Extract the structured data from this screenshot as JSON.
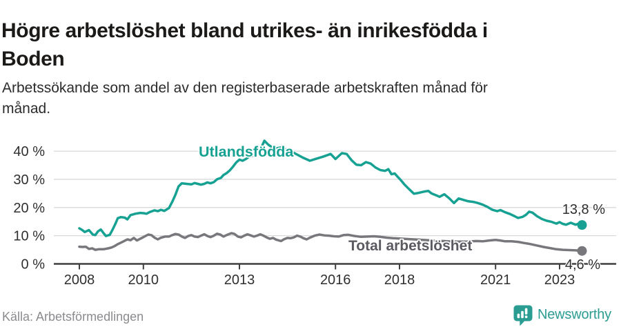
{
  "header": {
    "title": "Högre arbetslöshet bland utrikes- än inrikesfödda i\nBoden",
    "subtitle": "Arbetssökande som andel av den registerbaserade arbetskraften månad för\nmånad."
  },
  "footer": {
    "source": "Källa: Arbetsförmedlingen",
    "brand": "Newsworthy",
    "brand_icon": "newsworthy-speech-bubble-bar-chart-icon"
  },
  "colors": {
    "accent_teal": "#16a192",
    "series_gray": "#77777c",
    "label_gray": "#5a5a60",
    "grid": "#d9d9d9",
    "axis": "#3f3f3f",
    "tick_text": "#2f2f2f",
    "value_label_text": "#2d2d2d",
    "brand_teal": "#2b9c92"
  },
  "chart_data": {
    "type": "line",
    "title": "Högre arbetslöshet bland utrikes- än inrikesfödda i Boden",
    "subtitle": "Arbetssökande som andel av den registerbaserade arbetskraften månad för månad.",
    "unit": "%",
    "grid": true,
    "x_axis": {
      "range": [
        2007.9,
        2024.1
      ],
      "ticks": [
        2008,
        2010,
        2013,
        2016,
        2018,
        2021,
        2023
      ],
      "tick_labels": [
        "2008",
        "2010",
        "2013",
        "2016",
        "2018",
        "2021",
        "2023"
      ]
    },
    "y_axis": {
      "range": [
        0,
        46
      ],
      "ticks": [
        0,
        10,
        20,
        30,
        40
      ],
      "tick_labels": [
        "0 %",
        "10 %",
        "20 %",
        "30 %",
        "40 %"
      ]
    },
    "series": [
      {
        "name": "Utlandsfödda",
        "color": "#16a192",
        "end_value": 13.8,
        "end_label": "13,8 %",
        "points": [
          [
            2008.0,
            12.6
          ],
          [
            2008.08,
            12.1
          ],
          [
            2008.17,
            11.3
          ],
          [
            2008.3,
            12.0
          ],
          [
            2008.42,
            10.4
          ],
          [
            2008.5,
            10.2
          ],
          [
            2008.58,
            11.5
          ],
          [
            2008.67,
            12.2
          ],
          [
            2008.75,
            11.0
          ],
          [
            2008.83,
            9.9
          ],
          [
            2008.95,
            10.3
          ],
          [
            2009.05,
            12.4
          ],
          [
            2009.12,
            14.1
          ],
          [
            2009.2,
            16.2
          ],
          [
            2009.3,
            16.6
          ],
          [
            2009.42,
            16.4
          ],
          [
            2009.5,
            15.8
          ],
          [
            2009.6,
            17.3
          ],
          [
            2009.75,
            17.8
          ],
          [
            2009.9,
            18.1
          ],
          [
            2010.0,
            18.0
          ],
          [
            2010.1,
            17.8
          ],
          [
            2010.2,
            18.4
          ],
          [
            2010.35,
            19.0
          ],
          [
            2010.45,
            18.7
          ],
          [
            2010.55,
            19.2
          ],
          [
            2010.65,
            18.8
          ],
          [
            2010.8,
            19.8
          ],
          [
            2010.9,
            22.0
          ],
          [
            2011.0,
            24.5
          ],
          [
            2011.1,
            27.5
          ],
          [
            2011.2,
            28.6
          ],
          [
            2011.35,
            28.4
          ],
          [
            2011.5,
            28.2
          ],
          [
            2011.6,
            28.7
          ],
          [
            2011.7,
            28.4
          ],
          [
            2011.8,
            28.1
          ],
          [
            2011.9,
            28.4
          ],
          [
            2012.0,
            28.9
          ],
          [
            2012.1,
            28.6
          ],
          [
            2012.2,
            29.0
          ],
          [
            2012.3,
            30.0
          ],
          [
            2012.42,
            30.5
          ],
          [
            2012.5,
            31.5
          ],
          [
            2012.6,
            32.2
          ],
          [
            2012.7,
            33.2
          ],
          [
            2012.8,
            34.5
          ],
          [
            2012.9,
            36.0
          ],
          [
            2013.0,
            37.0
          ],
          [
            2013.1,
            36.6
          ],
          [
            2013.2,
            37.2
          ],
          [
            2013.3,
            38.0
          ],
          [
            2013.45,
            38.5
          ],
          [
            2013.55,
            39.2
          ],
          [
            2013.65,
            40.5
          ],
          [
            2013.78,
            43.7
          ],
          [
            2013.9,
            42.3
          ],
          [
            2014.0,
            41.5
          ],
          [
            2014.15,
            41.0
          ],
          [
            2014.3,
            41.3
          ],
          [
            2014.45,
            40.6
          ],
          [
            2014.6,
            40.0
          ],
          [
            2014.8,
            38.8
          ],
          [
            2015.0,
            37.6
          ],
          [
            2015.2,
            36.6
          ],
          [
            2015.4,
            37.3
          ],
          [
            2015.6,
            38.0
          ],
          [
            2015.85,
            39.0
          ],
          [
            2016.0,
            37.2
          ],
          [
            2016.2,
            39.3
          ],
          [
            2016.35,
            39.0
          ],
          [
            2016.5,
            36.8
          ],
          [
            2016.65,
            35.2
          ],
          [
            2016.8,
            35.0
          ],
          [
            2016.95,
            36.1
          ],
          [
            2017.1,
            35.6
          ],
          [
            2017.25,
            34.2
          ],
          [
            2017.4,
            33.3
          ],
          [
            2017.55,
            33.0
          ],
          [
            2017.65,
            33.6
          ],
          [
            2017.75,
            31.8
          ],
          [
            2017.85,
            32.1
          ],
          [
            2017.95,
            30.8
          ],
          [
            2018.05,
            29.6
          ],
          [
            2018.15,
            28.2
          ],
          [
            2018.3,
            26.5
          ],
          [
            2018.45,
            24.9
          ],
          [
            2018.6,
            25.2
          ],
          [
            2018.75,
            25.6
          ],
          [
            2018.9,
            25.9
          ],
          [
            2019.0,
            25.0
          ],
          [
            2019.15,
            24.3
          ],
          [
            2019.25,
            23.8
          ],
          [
            2019.4,
            24.7
          ],
          [
            2019.55,
            23.3
          ],
          [
            2019.7,
            21.6
          ],
          [
            2019.85,
            23.2
          ],
          [
            2020.0,
            22.7
          ],
          [
            2020.15,
            22.2
          ],
          [
            2020.3,
            22.0
          ],
          [
            2020.45,
            21.6
          ],
          [
            2020.6,
            21.0
          ],
          [
            2020.75,
            20.2
          ],
          [
            2020.9,
            19.2
          ],
          [
            2021.05,
            18.7
          ],
          [
            2021.15,
            19.1
          ],
          [
            2021.3,
            18.3
          ],
          [
            2021.45,
            17.7
          ],
          [
            2021.6,
            16.9
          ],
          [
            2021.7,
            16.3
          ],
          [
            2021.85,
            16.7
          ],
          [
            2021.95,
            17.4
          ],
          [
            2022.05,
            18.5
          ],
          [
            2022.15,
            18.2
          ],
          [
            2022.3,
            16.9
          ],
          [
            2022.45,
            15.9
          ],
          [
            2022.6,
            15.3
          ],
          [
            2022.75,
            14.9
          ],
          [
            2022.9,
            14.3
          ],
          [
            2023.0,
            14.8
          ],
          [
            2023.1,
            14.2
          ],
          [
            2023.2,
            13.9
          ],
          [
            2023.35,
            14.6
          ],
          [
            2023.5,
            13.9
          ],
          [
            2023.6,
            14.3
          ],
          [
            2023.7,
            13.8
          ]
        ]
      },
      {
        "name": "Total arbetslöshet",
        "color": "#77777c",
        "end_value": 4.6,
        "end_label": "4,6 %",
        "points": [
          [
            2008.0,
            6.1
          ],
          [
            2008.1,
            6.0
          ],
          [
            2008.2,
            6.1
          ],
          [
            2008.3,
            5.3
          ],
          [
            2008.4,
            5.5
          ],
          [
            2008.5,
            5.0
          ],
          [
            2008.6,
            5.2
          ],
          [
            2008.75,
            5.2
          ],
          [
            2008.9,
            5.5
          ],
          [
            2009.0,
            5.8
          ],
          [
            2009.1,
            6.3
          ],
          [
            2009.2,
            7.0
          ],
          [
            2009.35,
            7.8
          ],
          [
            2009.5,
            8.7
          ],
          [
            2009.6,
            8.4
          ],
          [
            2009.7,
            9.2
          ],
          [
            2009.8,
            8.3
          ],
          [
            2009.95,
            9.2
          ],
          [
            2010.05,
            9.8
          ],
          [
            2010.15,
            10.4
          ],
          [
            2010.25,
            10.2
          ],
          [
            2010.35,
            9.3
          ],
          [
            2010.45,
            8.7
          ],
          [
            2010.55,
            9.3
          ],
          [
            2010.68,
            9.7
          ],
          [
            2010.8,
            9.7
          ],
          [
            2010.9,
            10.2
          ],
          [
            2011.0,
            10.6
          ],
          [
            2011.1,
            10.4
          ],
          [
            2011.2,
            9.7
          ],
          [
            2011.3,
            9.2
          ],
          [
            2011.4,
            9.9
          ],
          [
            2011.5,
            10.2
          ],
          [
            2011.6,
            9.7
          ],
          [
            2011.7,
            9.5
          ],
          [
            2011.8,
            10.0
          ],
          [
            2011.9,
            10.5
          ],
          [
            2012.0,
            9.9
          ],
          [
            2012.1,
            9.5
          ],
          [
            2012.2,
            10.0
          ],
          [
            2012.3,
            10.7
          ],
          [
            2012.4,
            10.4
          ],
          [
            2012.5,
            9.7
          ],
          [
            2012.6,
            10.2
          ],
          [
            2012.75,
            10.9
          ],
          [
            2012.85,
            10.6
          ],
          [
            2012.95,
            9.7
          ],
          [
            2013.05,
            9.4
          ],
          [
            2013.15,
            10.0
          ],
          [
            2013.25,
            10.5
          ],
          [
            2013.35,
            10.1
          ],
          [
            2013.45,
            9.7
          ],
          [
            2013.55,
            10.0
          ],
          [
            2013.65,
            10.5
          ],
          [
            2013.75,
            10.0
          ],
          [
            2013.85,
            9.4
          ],
          [
            2013.95,
            8.9
          ],
          [
            2014.05,
            9.2
          ],
          [
            2014.15,
            8.6
          ],
          [
            2014.3,
            8.1
          ],
          [
            2014.4,
            8.8
          ],
          [
            2014.5,
            9.2
          ],
          [
            2014.6,
            9.1
          ],
          [
            2014.7,
            9.4
          ],
          [
            2014.8,
            10.0
          ],
          [
            2014.9,
            9.7
          ],
          [
            2015.0,
            9.1
          ],
          [
            2015.1,
            8.7
          ],
          [
            2015.2,
            9.3
          ],
          [
            2015.35,
            10.0
          ],
          [
            2015.5,
            10.4
          ],
          [
            2015.65,
            10.1
          ],
          [
            2015.8,
            10.0
          ],
          [
            2015.95,
            9.8
          ],
          [
            2016.1,
            9.7
          ],
          [
            2016.25,
            10.2
          ],
          [
            2016.4,
            10.3
          ],
          [
            2016.6,
            9.9
          ],
          [
            2016.8,
            9.6
          ],
          [
            2017.0,
            9.7
          ],
          [
            2017.2,
            9.8
          ],
          [
            2017.4,
            9.6
          ],
          [
            2017.6,
            9.3
          ],
          [
            2017.8,
            9.1
          ],
          [
            2018.0,
            9.0
          ],
          [
            2018.3,
            8.8
          ],
          [
            2018.6,
            8.6
          ],
          [
            2018.9,
            8.4
          ],
          [
            2019.2,
            8.2
          ],
          [
            2019.5,
            8.0
          ],
          [
            2019.8,
            7.9
          ],
          [
            2020.1,
            7.9
          ],
          [
            2020.4,
            8.1
          ],
          [
            2020.6,
            8.0
          ],
          [
            2020.8,
            8.3
          ],
          [
            2021.0,
            8.5
          ],
          [
            2021.15,
            8.3
          ],
          [
            2021.3,
            8.0
          ],
          [
            2021.5,
            8.0
          ],
          [
            2021.7,
            7.8
          ],
          [
            2021.9,
            7.4
          ],
          [
            2022.1,
            7.0
          ],
          [
            2022.3,
            6.5
          ],
          [
            2022.5,
            6.0
          ],
          [
            2022.7,
            5.6
          ],
          [
            2022.9,
            5.2
          ],
          [
            2023.1,
            5.0
          ],
          [
            2023.3,
            4.9
          ],
          [
            2023.5,
            4.8
          ],
          [
            2023.7,
            4.6
          ]
        ]
      }
    ],
    "legend_position": "inline-labels"
  }
}
